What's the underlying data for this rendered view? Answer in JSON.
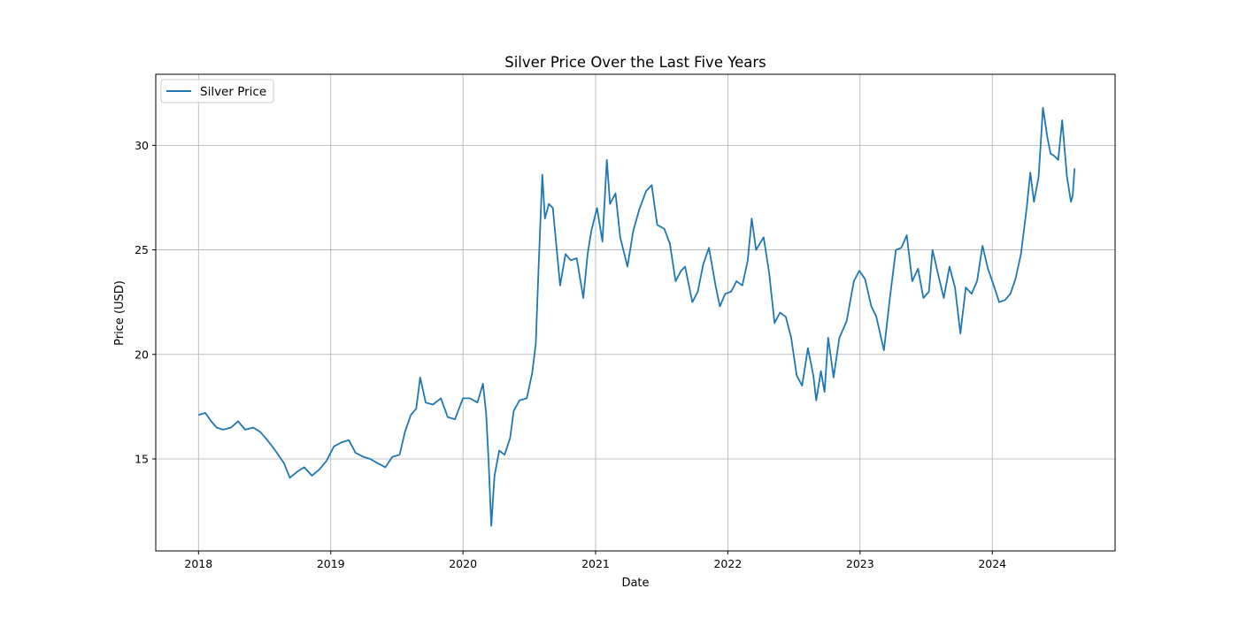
{
  "chart_data": {
    "type": "line",
    "title": "Silver Price Over the Last Five Years",
    "xlabel": "Date",
    "ylabel": "Price (USD)",
    "x_ticks": [
      "2018",
      "2019",
      "2020",
      "2021",
      "2022",
      "2023",
      "2024"
    ],
    "y_ticks": [
      "15",
      "20",
      "25",
      "30"
    ],
    "x_range": [
      "2017-09-05",
      "2024-12-05"
    ],
    "ylim": [
      10.6,
      33.4
    ],
    "grid": true,
    "legend_position": "upper left",
    "line_color": "#1f77b4",
    "series": [
      {
        "name": "Silver Price",
        "points": [
          [
            "2018-01-01",
            17.1
          ],
          [
            "2018-01-20",
            17.2
          ],
          [
            "2018-02-05",
            16.8
          ],
          [
            "2018-02-20",
            16.5
          ],
          [
            "2018-03-10",
            16.4
          ],
          [
            "2018-04-01",
            16.5
          ],
          [
            "2018-04-20",
            16.8
          ],
          [
            "2018-05-10",
            16.4
          ],
          [
            "2018-06-01",
            16.5
          ],
          [
            "2018-06-20",
            16.3
          ],
          [
            "2018-07-10",
            15.9
          ],
          [
            "2018-08-01",
            15.4
          ],
          [
            "2018-08-25",
            14.8
          ],
          [
            "2018-09-10",
            14.1
          ],
          [
            "2018-10-01",
            14.4
          ],
          [
            "2018-10-20",
            14.6
          ],
          [
            "2018-11-10",
            14.2
          ],
          [
            "2018-12-01",
            14.5
          ],
          [
            "2018-12-20",
            14.9
          ],
          [
            "2019-01-10",
            15.6
          ],
          [
            "2019-02-01",
            15.8
          ],
          [
            "2019-02-20",
            15.9
          ],
          [
            "2019-03-10",
            15.3
          ],
          [
            "2019-04-01",
            15.1
          ],
          [
            "2019-04-20",
            15.0
          ],
          [
            "2019-05-10",
            14.8
          ],
          [
            "2019-06-01",
            14.6
          ],
          [
            "2019-06-20",
            15.1
          ],
          [
            "2019-07-10",
            15.2
          ],
          [
            "2019-07-25",
            16.3
          ],
          [
            "2019-08-10",
            17.1
          ],
          [
            "2019-08-25",
            17.4
          ],
          [
            "2019-09-05",
            18.9
          ],
          [
            "2019-09-20",
            17.7
          ],
          [
            "2019-10-10",
            17.6
          ],
          [
            "2019-11-01",
            17.9
          ],
          [
            "2019-11-20",
            17.0
          ],
          [
            "2019-12-10",
            16.9
          ],
          [
            "2020-01-01",
            17.9
          ],
          [
            "2020-01-20",
            17.9
          ],
          [
            "2020-02-10",
            17.7
          ],
          [
            "2020-02-25",
            18.6
          ],
          [
            "2020-03-05",
            17.2
          ],
          [
            "2020-03-12",
            14.8
          ],
          [
            "2020-03-19",
            11.8
          ],
          [
            "2020-03-28",
            14.2
          ],
          [
            "2020-04-10",
            15.4
          ],
          [
            "2020-04-25",
            15.2
          ],
          [
            "2020-05-10",
            16.0
          ],
          [
            "2020-05-20",
            17.3
          ],
          [
            "2020-06-05",
            17.8
          ],
          [
            "2020-06-25",
            17.9
          ],
          [
            "2020-07-10",
            19.1
          ],
          [
            "2020-07-20",
            20.5
          ],
          [
            "2020-07-28",
            24.3
          ],
          [
            "2020-08-07",
            28.6
          ],
          [
            "2020-08-14",
            26.5
          ],
          [
            "2020-08-25",
            27.2
          ],
          [
            "2020-09-05",
            27.0
          ],
          [
            "2020-09-25",
            23.3
          ],
          [
            "2020-10-10",
            24.8
          ],
          [
            "2020-10-25",
            24.5
          ],
          [
            "2020-11-10",
            24.6
          ],
          [
            "2020-11-28",
            22.7
          ],
          [
            "2020-12-10",
            24.8
          ],
          [
            "2020-12-20",
            25.9
          ],
          [
            "2021-01-05",
            27.0
          ],
          [
            "2021-01-20",
            25.4
          ],
          [
            "2021-02-01",
            29.3
          ],
          [
            "2021-02-10",
            27.2
          ],
          [
            "2021-02-25",
            27.7
          ],
          [
            "2021-03-10",
            25.6
          ],
          [
            "2021-03-30",
            24.2
          ],
          [
            "2021-04-15",
            25.9
          ],
          [
            "2021-05-01",
            26.9
          ],
          [
            "2021-05-20",
            27.8
          ],
          [
            "2021-06-05",
            28.1
          ],
          [
            "2021-06-20",
            26.2
          ],
          [
            "2021-07-10",
            26.0
          ],
          [
            "2021-07-25",
            25.3
          ],
          [
            "2021-08-10",
            23.5
          ],
          [
            "2021-08-25",
            24.0
          ],
          [
            "2021-09-05",
            24.2
          ],
          [
            "2021-09-25",
            22.5
          ],
          [
            "2021-10-10",
            23.0
          ],
          [
            "2021-10-25",
            24.3
          ],
          [
            "2021-11-10",
            25.1
          ],
          [
            "2021-11-28",
            23.3
          ],
          [
            "2021-12-10",
            22.3
          ],
          [
            "2021-12-25",
            22.9
          ],
          [
            "2022-01-10",
            23.0
          ],
          [
            "2022-01-25",
            23.5
          ],
          [
            "2022-02-10",
            23.3
          ],
          [
            "2022-02-25",
            24.5
          ],
          [
            "2022-03-08",
            26.5
          ],
          [
            "2022-03-20",
            25.0
          ],
          [
            "2022-04-10",
            25.6
          ],
          [
            "2022-04-25",
            23.9
          ],
          [
            "2022-05-10",
            21.5
          ],
          [
            "2022-05-25",
            22.0
          ],
          [
            "2022-06-10",
            21.8
          ],
          [
            "2022-06-25",
            20.8
          ],
          [
            "2022-07-10",
            19.0
          ],
          [
            "2022-07-25",
            18.5
          ],
          [
            "2022-08-10",
            20.3
          ],
          [
            "2022-08-25",
            19.0
          ],
          [
            "2022-09-02",
            17.8
          ],
          [
            "2022-09-15",
            19.2
          ],
          [
            "2022-09-25",
            18.2
          ],
          [
            "2022-10-05",
            20.8
          ],
          [
            "2022-10-20",
            18.9
          ],
          [
            "2022-11-05",
            20.8
          ],
          [
            "2022-11-25",
            21.6
          ],
          [
            "2022-12-15",
            23.5
          ],
          [
            "2022-12-30",
            24.0
          ],
          [
            "2023-01-15",
            23.6
          ],
          [
            "2023-02-01",
            22.3
          ],
          [
            "2023-02-15",
            21.8
          ],
          [
            "2023-03-08",
            20.2
          ],
          [
            "2023-03-25",
            22.8
          ],
          [
            "2023-04-10",
            25.0
          ],
          [
            "2023-04-25",
            25.1
          ],
          [
            "2023-05-10",
            25.7
          ],
          [
            "2023-05-25",
            23.5
          ],
          [
            "2023-06-10",
            24.1
          ],
          [
            "2023-06-25",
            22.7
          ],
          [
            "2023-07-10",
            23.0
          ],
          [
            "2023-07-20",
            25.0
          ],
          [
            "2023-08-05",
            23.8
          ],
          [
            "2023-08-20",
            22.7
          ],
          [
            "2023-09-05",
            24.2
          ],
          [
            "2023-09-20",
            23.2
          ],
          [
            "2023-10-05",
            21.0
          ],
          [
            "2023-10-20",
            23.2
          ],
          [
            "2023-11-05",
            22.9
          ],
          [
            "2023-11-20",
            23.5
          ],
          [
            "2023-12-05",
            25.2
          ],
          [
            "2023-12-20",
            24.1
          ],
          [
            "2024-01-05",
            23.3
          ],
          [
            "2024-01-20",
            22.5
          ],
          [
            "2024-02-05",
            22.6
          ],
          [
            "2024-02-20",
            22.9
          ],
          [
            "2024-03-05",
            23.6
          ],
          [
            "2024-03-20",
            24.8
          ],
          [
            "2024-04-05",
            27.0
          ],
          [
            "2024-04-15",
            28.7
          ],
          [
            "2024-04-25",
            27.3
          ],
          [
            "2024-05-08",
            28.5
          ],
          [
            "2024-05-20",
            31.8
          ],
          [
            "2024-06-01",
            30.4
          ],
          [
            "2024-06-10",
            29.6
          ],
          [
            "2024-06-20",
            29.5
          ],
          [
            "2024-07-01",
            29.3
          ],
          [
            "2024-07-12",
            31.2
          ],
          [
            "2024-07-25",
            28.5
          ],
          [
            "2024-08-05",
            27.3
          ],
          [
            "2024-08-10",
            27.6
          ],
          [
            "2024-08-15",
            28.9
          ]
        ]
      }
    ]
  }
}
